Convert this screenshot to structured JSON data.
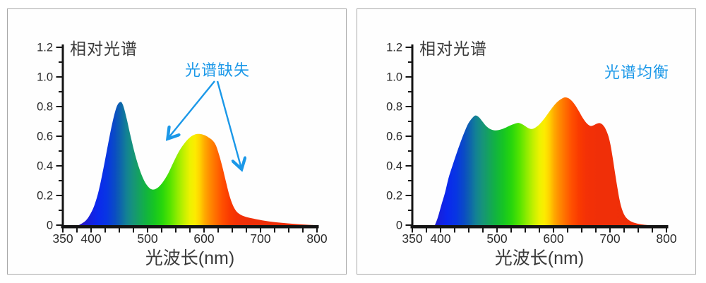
{
  "page": {
    "background": "#ffffff",
    "panel_border_color": "#a9a9a9"
  },
  "colors": {
    "accent_blue": "#1B98E8",
    "axis": "#141414",
    "tick_label": "#2B2B2B",
    "title_text": "#3A3A3A"
  },
  "wavelength_gradient_stops": [
    [
      380,
      "#2B16C0"
    ],
    [
      398,
      "#1520DE"
    ],
    [
      412,
      "#0A28EE"
    ],
    [
      428,
      "#0836E2"
    ],
    [
      442,
      "#0A4CC4"
    ],
    [
      452,
      "#0E64AC"
    ],
    [
      462,
      "#128096"
    ],
    [
      474,
      "#16937A"
    ],
    [
      486,
      "#14A45C"
    ],
    [
      498,
      "#12B43E"
    ],
    [
      512,
      "#17C622"
    ],
    [
      526,
      "#28D60C"
    ],
    [
      540,
      "#55E400"
    ],
    [
      553,
      "#91EC00"
    ],
    [
      565,
      "#C6F000"
    ],
    [
      575,
      "#ECF200"
    ],
    [
      584,
      "#FCEC00"
    ],
    [
      592,
      "#FFD400"
    ],
    [
      601,
      "#FFAA00"
    ],
    [
      610,
      "#FF8C00"
    ],
    [
      620,
      "#FF7000"
    ],
    [
      632,
      "#FF5000"
    ],
    [
      645,
      "#FA3A00"
    ],
    [
      658,
      "#F43106"
    ],
    [
      678,
      "#F02F08"
    ],
    [
      800,
      "#EE2E08"
    ]
  ],
  "chart_data": [
    {
      "id": "spectrum-deficient",
      "type": "area",
      "title": "相对光谱",
      "xlabel": "光波长(nm)",
      "ylabel": "",
      "xlim": [
        350,
        800
      ],
      "ylim": [
        0,
        1.2
      ],
      "x_ticks_labeled": [
        350,
        400,
        500,
        600,
        700,
        800
      ],
      "x_tick_minor_step": 25,
      "y_ticks_labeled": [
        "0",
        "0.2",
        "0.4",
        "0.6",
        "0.8",
        "1.0",
        "1.2"
      ],
      "y_tick_major_step": 0.2,
      "y_tick_minor_step": 0.1,
      "grid": false,
      "legend": "none",
      "fill": "wavelength-rainbow-gradient",
      "annotation": {
        "text": "光谱缺失",
        "color": "#1B98E8",
        "pos": [
          297,
          94
        ],
        "arrows": [
          {
            "from": [
              293,
              102
            ],
            "to": [
              227,
              183
            ]
          },
          {
            "from": [
              297,
              102
            ],
            "to": [
              331,
              226
            ]
          }
        ]
      },
      "series": [
        {
          "name": "相对光谱",
          "points": [
            [
              378,
              0
            ],
            [
              384,
              0.012
            ],
            [
              391,
              0.032
            ],
            [
              398,
              0.07
            ],
            [
              406,
              0.135
            ],
            [
              414,
              0.24
            ],
            [
              422,
              0.385
            ],
            [
              430,
              0.545
            ],
            [
              438,
              0.695
            ],
            [
              445,
              0.795
            ],
            [
              451,
              0.83
            ],
            [
              456,
              0.815
            ],
            [
              462,
              0.735
            ],
            [
              470,
              0.6
            ],
            [
              478,
              0.475
            ],
            [
              486,
              0.375
            ],
            [
              494,
              0.3
            ],
            [
              502,
              0.255
            ],
            [
              509,
              0.24
            ],
            [
              517,
              0.25
            ],
            [
              526,
              0.285
            ],
            [
              536,
              0.345
            ],
            [
              546,
              0.425
            ],
            [
              556,
              0.5
            ],
            [
              566,
              0.555
            ],
            [
              575,
              0.592
            ],
            [
              584,
              0.612
            ],
            [
              592,
              0.615
            ],
            [
              600,
              0.608
            ],
            [
              608,
              0.592
            ],
            [
              615,
              0.572
            ],
            [
              621,
              0.538
            ],
            [
              627,
              0.47
            ],
            [
              633,
              0.385
            ],
            [
              639,
              0.29
            ],
            [
              645,
              0.2
            ],
            [
              651,
              0.135
            ],
            [
              657,
              0.095
            ],
            [
              664,
              0.072
            ],
            [
              672,
              0.058
            ],
            [
              682,
              0.048
            ],
            [
              695,
              0.038
            ],
            [
              710,
              0.028
            ],
            [
              728,
              0.019
            ],
            [
              748,
              0.012
            ],
            [
              768,
              0.006
            ],
            [
              788,
              0.002
            ],
            [
              796,
              0
            ]
          ]
        }
      ]
    },
    {
      "id": "spectrum-balanced",
      "type": "area",
      "title": "相对光谱",
      "xlabel": "光波长(nm)",
      "ylabel": "",
      "xlim": [
        350,
        800
      ],
      "ylim": [
        0,
        1.2
      ],
      "x_ticks_labeled": [
        350,
        400,
        500,
        600,
        700,
        800
      ],
      "x_tick_minor_step": 25,
      "y_ticks_labeled": [
        "0",
        "0.2",
        "0.4",
        "0.6",
        "0.8",
        "1.0",
        "1.2"
      ],
      "y_tick_major_step": 0.2,
      "y_tick_minor_step": 0.1,
      "grid": false,
      "legend": "none",
      "fill": "wavelength-rainbow-gradient",
      "annotation": {
        "text": "光谱均衡",
        "color": "#1B98E8",
        "pos": [
          396,
          97
        ],
        "arrows": []
      },
      "series": [
        {
          "name": "相对光谱",
          "points": [
            [
              390,
              0
            ],
            [
              395,
              0.05
            ],
            [
              401,
              0.13
            ],
            [
              408,
              0.22
            ],
            [
              414,
              0.315
            ],
            [
              421,
              0.4
            ],
            [
              428,
              0.48
            ],
            [
              435,
              0.555
            ],
            [
              442,
              0.625
            ],
            [
              449,
              0.685
            ],
            [
              456,
              0.722
            ],
            [
              462,
              0.74
            ],
            [
              468,
              0.728
            ],
            [
              474,
              0.7
            ],
            [
              481,
              0.668
            ],
            [
              488,
              0.648
            ],
            [
              495,
              0.64
            ],
            [
              502,
              0.641
            ],
            [
              509,
              0.648
            ],
            [
              517,
              0.661
            ],
            [
              525,
              0.675
            ],
            [
              532,
              0.685
            ],
            [
              538,
              0.69
            ],
            [
              544,
              0.682
            ],
            [
              550,
              0.668
            ],
            [
              556,
              0.654
            ],
            [
              562,
              0.649
            ],
            [
              568,
              0.658
            ],
            [
              575,
              0.68
            ],
            [
              583,
              0.715
            ],
            [
              591,
              0.757
            ],
            [
              599,
              0.798
            ],
            [
              607,
              0.832
            ],
            [
              614,
              0.852
            ],
            [
              620,
              0.862
            ],
            [
              626,
              0.857
            ],
            [
              632,
              0.84
            ],
            [
              638,
              0.812
            ],
            [
              644,
              0.775
            ],
            [
              650,
              0.735
            ],
            [
              656,
              0.7
            ],
            [
              661,
              0.679
            ],
            [
              666,
              0.669
            ],
            [
              671,
              0.674
            ],
            [
              677,
              0.685
            ],
            [
              682,
              0.688
            ],
            [
              687,
              0.677
            ],
            [
              692,
              0.65
            ],
            [
              697,
              0.603
            ],
            [
              701,
              0.54
            ],
            [
              705,
              0.45
            ],
            [
              709,
              0.35
            ],
            [
              713,
              0.255
            ],
            [
              717,
              0.17
            ],
            [
              721,
              0.11
            ],
            [
              726,
              0.065
            ],
            [
              732,
              0.038
            ],
            [
              740,
              0.02
            ],
            [
              750,
              0.009
            ],
            [
              760,
              0.003
            ],
            [
              768,
              0
            ]
          ]
        }
      ]
    }
  ]
}
